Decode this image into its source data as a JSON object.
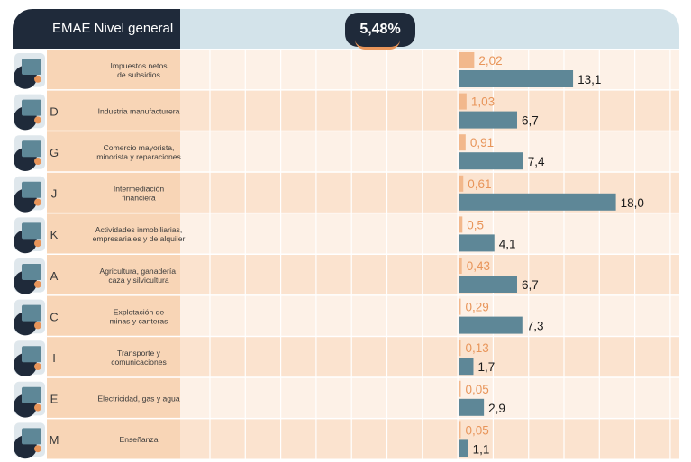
{
  "header": {
    "title": "EMAE Nivel general",
    "total": "5,48%"
  },
  "colors": {
    "header_dark": "#1f2a3a",
    "header_light": "#d3e3ea",
    "contribution_bar": "#f2b88c",
    "contribution_text": "#e8955a",
    "growth_bar": "#5e8797",
    "row_light": "#fdf1e7",
    "row_dark": "#fbe3cf",
    "label_cell": "#f8d5b6"
  },
  "chart_data": {
    "type": "bar",
    "categories": [
      {
        "letter": "",
        "label": [
          "Impuestos netos",
          "de subsidios"
        ],
        "icon": "taxes-icon"
      },
      {
        "letter": "D",
        "label": [
          "Industria manufacturera"
        ],
        "icon": "gears-icon"
      },
      {
        "letter": "G",
        "label": [
          "Comercio mayorista,",
          "minorista y reparaciones"
        ],
        "icon": "shopping-cart-icon"
      },
      {
        "letter": "J",
        "label": [
          "Intermediación",
          "financiera"
        ],
        "icon": "bank-icon"
      },
      {
        "letter": "K",
        "label": [
          "Actividades inmobiliarias,",
          "empresariales y de alquiler"
        ],
        "icon": "real-estate-icon"
      },
      {
        "letter": "A",
        "label": [
          "Agricultura, ganadería,",
          "caza y silvicultura"
        ],
        "icon": "agriculture-icon"
      },
      {
        "letter": "C",
        "label": [
          "Explotación de",
          "minas y canteras"
        ],
        "icon": "mining-icon"
      },
      {
        "letter": "I",
        "label": [
          "Transporte y",
          "comunicaciones"
        ],
        "icon": "transport-icon"
      },
      {
        "letter": "E",
        "label": [
          "Electricidad, gas y agua"
        ],
        "icon": "utilities-icon"
      },
      {
        "letter": "M",
        "label": [
          "Enseñanza"
        ],
        "icon": "education-icon"
      }
    ],
    "series": [
      {
        "values": [
          2.02,
          1.03,
          0.91,
          0.61,
          0.5,
          0.43,
          0.29,
          0.13,
          0.05,
          0.05
        ],
        "labels": [
          "2,02",
          "1,03",
          "0,91",
          "0,61",
          "0,5",
          "0,43",
          "0,29",
          "0,13",
          "0,05",
          "0,05"
        ]
      },
      {
        "values": [
          13.1,
          6.7,
          7.4,
          18.0,
          4.1,
          6.7,
          7.3,
          1.7,
          2.9,
          1.1
        ],
        "labels": [
          "13,1",
          "6,7",
          "7,4",
          "18,0",
          "4,1",
          "6,7",
          "7,3",
          "1,7",
          "2,9",
          "1,1"
        ]
      }
    ]
  }
}
